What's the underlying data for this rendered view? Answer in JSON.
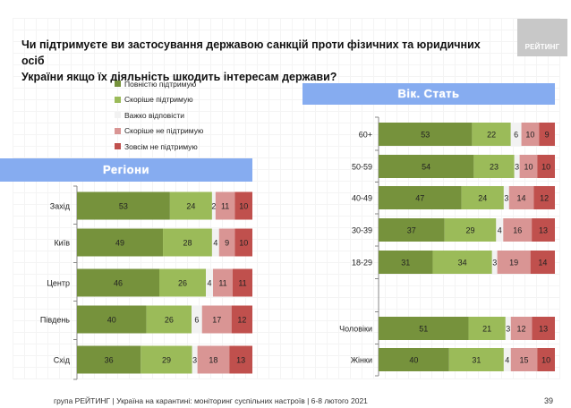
{
  "header": {
    "title_line1": "Чи підтримуєте ви застосування державою санкцій проти фізичних та юридичних осіб",
    "title_line2": "України якщо їх діяльність шкодить інтересам держави?",
    "logo_text": "РЕЙТИНГ"
  },
  "legend": [
    {
      "label": "Повністю підтримую",
      "color": "#76923c"
    },
    {
      "label": "Скоріше підтримую",
      "color": "#9bbb59"
    },
    {
      "label": "Важко відповісти",
      "color": "#f2f2f2"
    },
    {
      "label": "Скоріше не підтримую",
      "color": "#d99594"
    },
    {
      "label": "Зовсім не підтримую",
      "color": "#c0504d"
    }
  ],
  "sections": {
    "regions_title": "Регіони",
    "age_sex_title": "Вік. Стать"
  },
  "chart_data": [
    {
      "type": "bar",
      "orientation": "horizontal-stacked-100",
      "title": "Регіони",
      "series_names": [
        "Повністю підтримую",
        "Скоріше підтримую",
        "Важко відповісти",
        "Скоріше не підтримую",
        "Зовсім не підтримую"
      ],
      "categories": [
        "Захід",
        "Київ",
        "Центр",
        "Південь",
        "Схід"
      ],
      "values": [
        [
          53,
          24,
          2,
          11,
          10
        ],
        [
          49,
          28,
          4,
          9,
          10
        ],
        [
          46,
          26,
          4,
          11,
          11
        ],
        [
          40,
          26,
          6,
          17,
          12
        ],
        [
          36,
          29,
          3,
          18,
          13
        ]
      ],
      "xlim": [
        0,
        100
      ]
    },
    {
      "type": "bar",
      "orientation": "horizontal-stacked-100",
      "title": "Вік. Стать",
      "series_names": [
        "Повністю підтримую",
        "Скоріше підтримую",
        "Важко відповісти",
        "Скоріше не підтримую",
        "Зовсім не підтримую"
      ],
      "categories": [
        "60+",
        "50-59",
        "40-49",
        "30-39",
        "18-29",
        "",
        "Чоловіки",
        "Жінки"
      ],
      "values": [
        [
          53,
          22,
          6,
          10,
          9
        ],
        [
          54,
          23,
          3,
          10,
          10
        ],
        [
          47,
          24,
          3,
          14,
          12
        ],
        [
          37,
          29,
          4,
          16,
          13
        ],
        [
          31,
          34,
          3,
          19,
          14
        ],
        null,
        [
          51,
          21,
          3,
          12,
          13
        ],
        [
          40,
          31,
          4,
          15,
          10
        ]
      ],
      "xlim": [
        0,
        100
      ]
    }
  ],
  "footer": {
    "text": "група РЕЙТИНГ | Україна на карантині: моніторинг суспільних настроїв | 6-8 лютого 2021",
    "page_number": "39"
  }
}
